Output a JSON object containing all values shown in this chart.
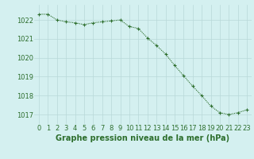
{
  "x": [
    0,
    1,
    2,
    3,
    4,
    5,
    6,
    7,
    8,
    9,
    10,
    11,
    12,
    13,
    14,
    15,
    16,
    17,
    18,
    19,
    20,
    21,
    22,
    23
  ],
  "y": [
    1022.3,
    1022.3,
    1022.0,
    1021.9,
    1021.85,
    1021.75,
    1021.85,
    1021.9,
    1021.95,
    1022.0,
    1021.65,
    1021.55,
    1021.05,
    1020.65,
    1020.2,
    1019.6,
    1019.05,
    1018.5,
    1018.0,
    1017.45,
    1017.1,
    1017.0,
    1017.1,
    1017.25
  ],
  "ylim": [
    1016.5,
    1022.8
  ],
  "yticks": [
    1017,
    1018,
    1019,
    1020,
    1021,
    1022
  ],
  "xticks": [
    0,
    1,
    2,
    3,
    4,
    5,
    6,
    7,
    8,
    9,
    10,
    11,
    12,
    13,
    14,
    15,
    16,
    17,
    18,
    19,
    20,
    21,
    22,
    23
  ],
  "xlabel": "Graphe pression niveau de la mer (hPa)",
  "line_color": "#2d6e2d",
  "marker": "+",
  "marker_size": 3.5,
  "marker_linewidth": 0.8,
  "line_width": 0.8,
  "bg_color": "#d4f0f0",
  "grid_color": "#b8d8d8",
  "tick_label_fontsize": 6.0,
  "xlabel_fontsize": 7.0
}
